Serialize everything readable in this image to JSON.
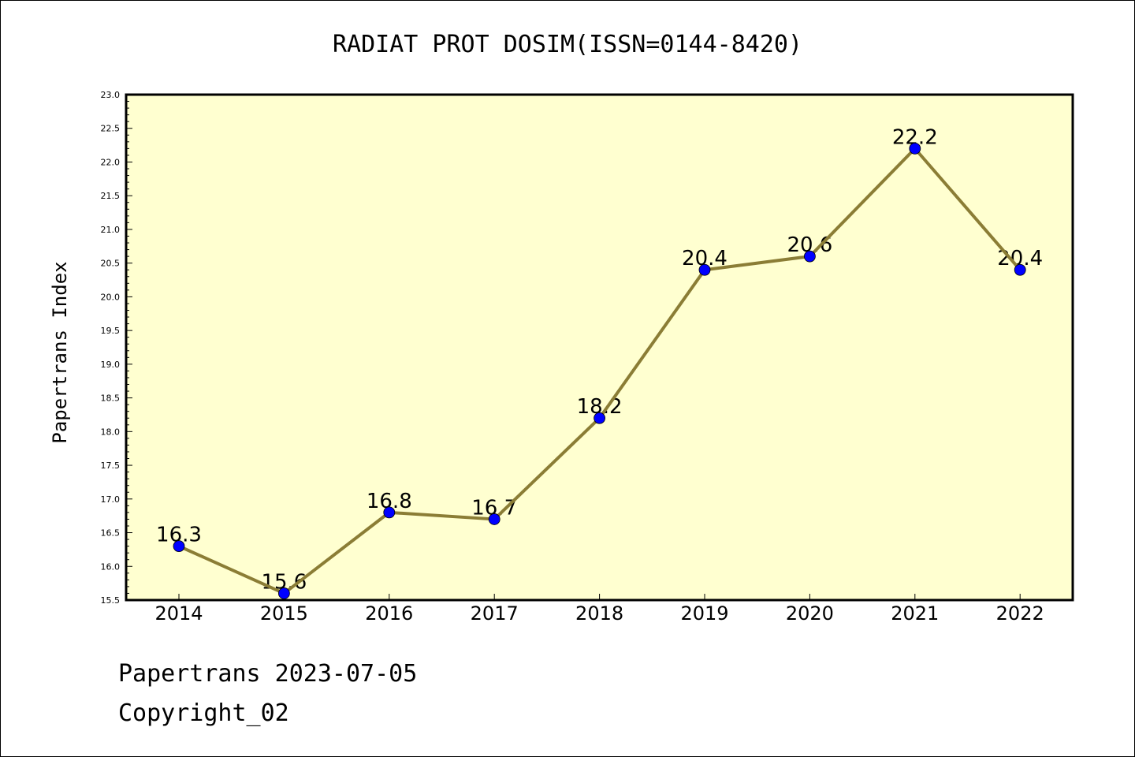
{
  "chart_data": {
    "type": "line",
    "title": "RADIAT PROT DOSIM(ISSN=0144-8420)",
    "ylabel": "Papertrans Index",
    "xlabel": "",
    "categories": [
      "2014",
      "2015",
      "2016",
      "2017",
      "2018",
      "2019",
      "2020",
      "2021",
      "2022"
    ],
    "values": [
      16.3,
      15.6,
      16.8,
      16.7,
      18.2,
      20.4,
      20.6,
      22.2,
      20.4
    ],
    "data_labels": [
      "16.3",
      "15.6",
      "16.8",
      "16.7",
      "18.2",
      "20.4",
      "20.6",
      "22.2",
      "20.4"
    ],
    "ylim": [
      15.5,
      23.0
    ],
    "yticks": [
      "15.5",
      "16.0",
      "16.5",
      "17.0",
      "17.5",
      "18.0",
      "18.5",
      "19.0",
      "19.5",
      "20.0",
      "20.5",
      "21.0",
      "21.5",
      "22.0",
      "22.5",
      "23.0"
    ],
    "grid": false,
    "colors": {
      "plot_background": "#ffffd0",
      "line": "#8b7d35",
      "marker": "#0000ff"
    }
  },
  "footer": {
    "line1": "Papertrans 2023-07-05",
    "line2": "Copyright_02"
  }
}
